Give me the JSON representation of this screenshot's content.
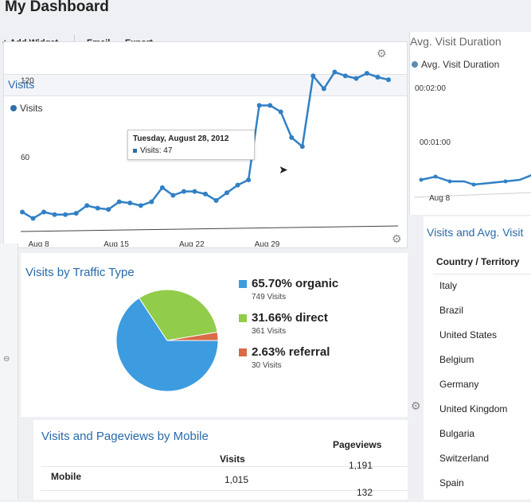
{
  "page": {
    "title": "My Dashboard"
  },
  "toolbar": {
    "add_widget": "+ Add Widget",
    "email": "Email",
    "export": "Export",
    "export_caret": "▾"
  },
  "visits_widget": {
    "title": "Visits",
    "legend": "Visits",
    "gear": "⚙",
    "tooltip": {
      "date": "Tuesday, August 28, 2012",
      "label": "Visits: 47"
    },
    "y_ticks": [
      "120",
      "60"
    ],
    "x_ticks": [
      "Aug 8",
      "Aug 15",
      "Aug 22",
      "Aug 29"
    ]
  },
  "chart_data": [
    {
      "type": "line",
      "title": "Visits",
      "series": [
        {
          "name": "Visits",
          "x": [
            "2012-08-07",
            "2012-08-08",
            "2012-08-09",
            "2012-08-10",
            "2012-08-11",
            "2012-08-12",
            "2012-08-13",
            "2012-08-14",
            "2012-08-15",
            "2012-08-16",
            "2012-08-17",
            "2012-08-18",
            "2012-08-19",
            "2012-08-20",
            "2012-08-21",
            "2012-08-22",
            "2012-08-23",
            "2012-08-24",
            "2012-08-25",
            "2012-08-26",
            "2012-08-27",
            "2012-08-28",
            "2012-08-29",
            "2012-08-30",
            "2012-08-31",
            "2012-09-01",
            "2012-09-02",
            "2012-09-03",
            "2012-09-04",
            "2012-09-05",
            "2012-09-06",
            "2012-09-07",
            "2012-09-08",
            "2012-09-09",
            "2012-09-10"
          ],
          "values": [
            22,
            17,
            22,
            20,
            20,
            21,
            27,
            25,
            24,
            30,
            29,
            27,
            30,
            41,
            35,
            38,
            38,
            36,
            31,
            37,
            43,
            47,
            105,
            105,
            100,
            80,
            73,
            128,
            118,
            131,
            128,
            126,
            130,
            127,
            125
          ]
        }
      ],
      "y_ticks": [
        60,
        120
      ],
      "x_ticks": [
        "Aug 8",
        "Aug 15",
        "Aug 22",
        "Aug 29"
      ],
      "ylim": [
        0,
        140
      ],
      "legend": "top-left",
      "grid": false
    },
    {
      "type": "pie",
      "title": "Visits by Traffic Type",
      "slices": [
        {
          "label": "organic",
          "value": 65.7,
          "visits": 749,
          "color": "#3d9be0"
        },
        {
          "label": "direct",
          "value": 31.66,
          "visits": 361,
          "color": "#92cc4b"
        },
        {
          "label": "referral",
          "value": 2.63,
          "visits": 30,
          "color": "#d96a48"
        }
      ]
    }
  ],
  "traffic_widget": {
    "title": "Visits by Traffic Type",
    "gear": "⚙",
    "items": [
      {
        "pct": "65.70% organic",
        "sub": "749 Visits",
        "color": "#3d9be0"
      },
      {
        "pct": "31.66% direct",
        "sub": "361 Visits",
        "color": "#92cc4b"
      },
      {
        "pct": "2.63% referral",
        "sub": "30 Visits",
        "color": "#d96a48"
      }
    ]
  },
  "mobile_widget": {
    "title": "Visits and Pageviews by Mobile",
    "gear": "⚙",
    "headers": {
      "col1": "Mobile",
      "col2": "Visits",
      "col3": "Pageviews"
    },
    "rows": [
      {
        "visits": "1,015",
        "pageviews": "1,191"
      },
      {
        "visits": "",
        "pageviews": "132"
      }
    ]
  },
  "duration_widget": {
    "title": "Avg. Visit Duration",
    "legend": "Avg. Visit Duration",
    "y_ticks": [
      "00:02:00",
      "00:01:00"
    ],
    "x_tick": "Aug 8"
  },
  "country_widget": {
    "title": "Visits and Avg. Visit",
    "header": "Country / Territory",
    "countries": [
      "Italy",
      "Brazil",
      "United States",
      "Belgium",
      "Germany",
      "United Kingdom",
      "Bulgaria",
      "Switzerland",
      "Spain"
    ]
  },
  "colors": {
    "line": "#3180c5",
    "accent_text": "#2a6aa8"
  }
}
